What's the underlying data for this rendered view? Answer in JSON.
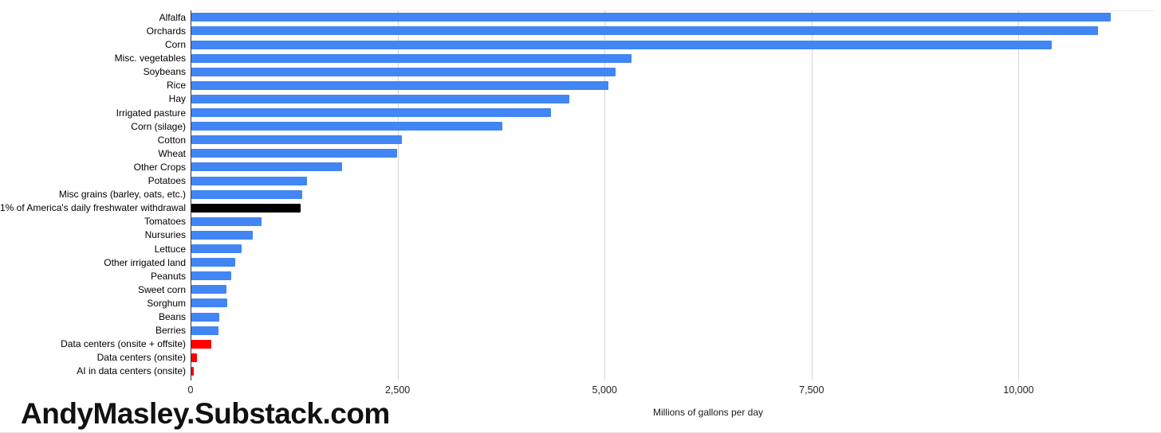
{
  "watermark": "AndyMasley.Substack.com",
  "chart_data": {
    "type": "bar",
    "orientation": "horizontal",
    "title": "",
    "xlabel": "Millions of gallons per day",
    "ylabel": "",
    "xlim": [
      0,
      11700
    ],
    "grid": "vertical-only",
    "legend": "none",
    "x_ticks": [
      0,
      2500,
      5000,
      7500,
      10000
    ],
    "x_tick_labels": [
      "0",
      "2,500",
      "5,000",
      "7,500",
      "10,000"
    ],
    "colors_legend": {
      "crops_blue": "#4285F4",
      "benchmark_black": "#000000",
      "data_centers_red": "#FF0000"
    },
    "categories": [
      "Alfalfa",
      "Orchards",
      "Corn",
      "Misc. vegetables",
      "Soybeans",
      "Rice",
      "Hay",
      "Irrigated pasture",
      "Corn (silage)",
      "Cotton",
      "Wheat",
      "Other Crops",
      "Potatoes",
      "Misc grains (barley, oats, etc.)",
      "1% of America's daily freshwater withdrawal",
      "Tomatoes",
      "Nursuries",
      "Lettuce",
      "Other irrigated land",
      "Peanuts",
      "Sweet corn",
      "Sorghum",
      "Beans",
      "Berries",
      "Data centers (onsite + offsite)",
      "Data centers (onsite)",
      "AI in data centers (onsite)"
    ],
    "values": [
      11100,
      10950,
      10390,
      5320,
      5120,
      5040,
      4565,
      4340,
      3755,
      2540,
      2480,
      1820,
      1400,
      1340,
      1320,
      845,
      740,
      610,
      525,
      480,
      425,
      430,
      340,
      330,
      245,
      66,
      30
    ],
    "colors": [
      "#4285F4",
      "#4285F4",
      "#4285F4",
      "#4285F4",
      "#4285F4",
      "#4285F4",
      "#4285F4",
      "#4285F4",
      "#4285F4",
      "#4285F4",
      "#4285F4",
      "#4285F4",
      "#4285F4",
      "#4285F4",
      "#000000",
      "#4285F4",
      "#4285F4",
      "#4285F4",
      "#4285F4",
      "#4285F4",
      "#4285F4",
      "#4285F4",
      "#4285F4",
      "#4285F4",
      "#FF0000",
      "#FF0000",
      "#FF0000"
    ]
  }
}
